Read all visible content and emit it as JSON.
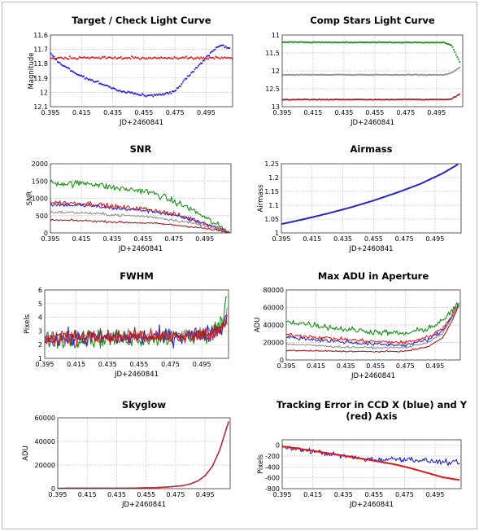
{
  "chart_data": [
    {
      "id": "target-check",
      "type": "scatter",
      "title_lines": [
        "Target / Check Light Curve"
      ],
      "xlabel": "JD+2460841",
      "ylabel": "Magnitude",
      "xlim": [
        0.395,
        0.512
      ],
      "ylim": [
        11.6,
        12.1
      ],
      "y_inverted": true,
      "xticks": [
        "0.395",
        "0.415",
        "0.435",
        "0.455",
        "0.475",
        "0.495"
      ],
      "yticks": [
        "11.6",
        "11.7",
        "11.8",
        "11.9",
        "12",
        "12.1"
      ],
      "series": [
        {
          "color": "#2020e0",
          "noise": 0.006,
          "x": [
            0.395,
            0.4,
            0.41,
            0.42,
            0.43,
            0.44,
            0.45,
            0.455,
            0.46,
            0.465,
            0.47,
            0.475,
            0.48,
            0.485,
            0.49,
            0.495,
            0.5,
            0.505,
            0.51
          ],
          "y": [
            11.72,
            11.79,
            11.86,
            11.91,
            11.95,
            11.99,
            12.01,
            12.02,
            12.02,
            12.02,
            12.01,
            11.99,
            11.93,
            11.87,
            11.82,
            11.76,
            11.7,
            11.67,
            11.69
          ]
        },
        {
          "color": "#e02020",
          "noise": 0.006,
          "x": [
            0.395,
            0.512
          ],
          "y": [
            11.76,
            11.76
          ]
        }
      ]
    },
    {
      "id": "comp-stars",
      "type": "scatter",
      "title_lines": [
        "Comp Stars Light Curve"
      ],
      "xlabel": "JD+2460841",
      "ylabel": "",
      "xlim": [
        0.395,
        0.512
      ],
      "ylim": [
        11,
        13
      ],
      "y_inverted": true,
      "xticks": [
        "0.395",
        "0.415",
        "0.435",
        "0.455",
        "0.475",
        "0.495"
      ],
      "yticks": [
        "11",
        "11.5",
        "12",
        "12.5",
        "13"
      ],
      "series": [
        {
          "color": "#189018",
          "noise": 0.008,
          "x": [
            0.395,
            0.5,
            0.505,
            0.51
          ],
          "y": [
            11.2,
            11.21,
            11.3,
            11.75
          ]
        },
        {
          "color": "#909090",
          "noise": 0.008,
          "x": [
            0.395,
            0.5,
            0.505,
            0.51
          ],
          "y": [
            12.11,
            12.11,
            12.05,
            11.9
          ]
        },
        {
          "color": "#a02020",
          "noise": 0.008,
          "x": [
            0.395,
            0.5,
            0.505,
            0.51
          ],
          "y": [
            12.8,
            12.8,
            12.78,
            12.65
          ]
        }
      ]
    },
    {
      "id": "snr",
      "type": "line",
      "title_lines": [
        "SNR"
      ],
      "xlabel": "JD+2460841",
      "ylabel": "SNR",
      "xlim": [
        0.395,
        0.512
      ],
      "ylim": [
        0,
        2000
      ],
      "xticks": [
        "0.395",
        "0.415",
        "0.435",
        "0.455",
        "0.475",
        "0.495"
      ],
      "yticks": [
        "0",
        "500",
        "1000",
        "1500",
        "2000"
      ],
      "series": [
        {
          "color": "#189018",
          "noise": 70,
          "x": [
            0.395,
            0.41,
            0.42,
            0.43,
            0.44,
            0.455,
            0.465,
            0.475,
            0.485,
            0.495,
            0.505,
            0.511
          ],
          "y": [
            1450,
            1420,
            1450,
            1350,
            1280,
            1220,
            1100,
            900,
            720,
            450,
            170,
            30
          ]
        },
        {
          "color": "#e02020",
          "noise": 50,
          "x": [
            0.395,
            0.41,
            0.42,
            0.43,
            0.44,
            0.455,
            0.465,
            0.475,
            0.485,
            0.495,
            0.505,
            0.511
          ],
          "y": [
            880,
            860,
            850,
            800,
            740,
            700,
            640,
            540,
            430,
            290,
            120,
            25
          ]
        },
        {
          "color": "#3030c8",
          "noise": 40,
          "x": [
            0.395,
            0.41,
            0.42,
            0.43,
            0.44,
            0.455,
            0.465,
            0.475,
            0.485,
            0.495,
            0.505,
            0.511
          ],
          "y": [
            820,
            800,
            790,
            740,
            700,
            650,
            600,
            500,
            400,
            270,
            110,
            22
          ]
        },
        {
          "color": "#909090",
          "noise": 30,
          "x": [
            0.395,
            0.41,
            0.42,
            0.43,
            0.44,
            0.455,
            0.465,
            0.475,
            0.485,
            0.495,
            0.505,
            0.511
          ],
          "y": [
            600,
            590,
            570,
            540,
            510,
            480,
            440,
            370,
            300,
            210,
            90,
            18
          ]
        },
        {
          "color": "#a02020",
          "noise": 20,
          "x": [
            0.395,
            0.41,
            0.42,
            0.43,
            0.44,
            0.455,
            0.465,
            0.475,
            0.485,
            0.495,
            0.505,
            0.511
          ],
          "y": [
            370,
            360,
            350,
            330,
            310,
            290,
            270,
            230,
            185,
            130,
            60,
            12
          ]
        }
      ]
    },
    {
      "id": "airmass",
      "type": "line",
      "title_lines": [
        "Airmass"
      ],
      "xlabel": "JD+2460841",
      "ylabel": "Airmass",
      "xlim": [
        0.395,
        0.512
      ],
      "ylim": [
        1,
        1.25
      ],
      "xticks": [
        "0.395",
        "0.415",
        "0.435",
        "0.455",
        "0.475",
        "0.495"
      ],
      "yticks": [
        "1",
        "1.05",
        "1.1",
        "1.15",
        "1.2",
        "1.25"
      ],
      "series": [
        {
          "color": "#2424d0",
          "noise": 0,
          "width": 2,
          "x": [
            0.395,
            0.41,
            0.425,
            0.44,
            0.455,
            0.47,
            0.485,
            0.5,
            0.51
          ],
          "y": [
            1.032,
            1.05,
            1.07,
            1.092,
            1.117,
            1.145,
            1.176,
            1.215,
            1.248
          ]
        }
      ]
    },
    {
      "id": "fwhm",
      "type": "line",
      "title_lines": [
        "FWHM"
      ],
      "xlabel": "JD+2460841",
      "ylabel": "Pixels",
      "xlim": [
        0.395,
        0.512
      ],
      "ylim": [
        1,
        6
      ],
      "xticks": [
        "0.395",
        "0.415",
        "0.435",
        "0.455",
        "0.475",
        "0.495"
      ],
      "yticks": [
        "1",
        "2",
        "3",
        "4",
        "5",
        "6"
      ],
      "series": [
        {
          "color": "#189018",
          "noise": 0.45,
          "x": [
            0.395,
            0.48,
            0.5,
            0.505,
            0.509,
            0.511
          ],
          "y": [
            2.4,
            2.5,
            2.7,
            3.2,
            4.2,
            5.6
          ]
        },
        {
          "color": "#909090",
          "noise": 0.35,
          "x": [
            0.395,
            0.48,
            0.5,
            0.505,
            0.509,
            0.511
          ],
          "y": [
            2.5,
            2.6,
            2.8,
            3.0,
            3.6,
            4.6
          ]
        },
        {
          "color": "#3030c8",
          "noise": 0.45,
          "x": [
            0.395,
            0.48,
            0.5,
            0.505,
            0.509,
            0.511
          ],
          "y": [
            2.4,
            2.6,
            2.8,
            3.0,
            3.5,
            4.2
          ]
        },
        {
          "color": "#e02020",
          "noise": 0.4,
          "x": [
            0.395,
            0.48,
            0.5,
            0.505,
            0.509,
            0.511
          ],
          "y": [
            2.5,
            2.6,
            2.8,
            3.0,
            3.4,
            4.0
          ]
        },
        {
          "color": "#a02020",
          "noise": 0.35,
          "x": [
            0.395,
            0.48,
            0.5,
            0.505,
            0.509,
            0.511
          ],
          "y": [
            2.6,
            2.6,
            2.8,
            3.0,
            3.3,
            3.8
          ]
        }
      ]
    },
    {
      "id": "max-adu",
      "type": "line",
      "title_lines": [
        "Max ADU in Aperture"
      ],
      "xlabel": "JD+2460841",
      "ylabel": "ADU",
      "xlim": [
        0.395,
        0.512
      ],
      "ylim": [
        0,
        80000
      ],
      "xticks": [
        "0.395",
        "0.415",
        "0.435",
        "0.455",
        "0.475",
        "0.495"
      ],
      "yticks": [
        "0",
        "20000",
        "40000",
        "60000",
        "80000"
      ],
      "series": [
        {
          "color": "#189018",
          "noise": 2500,
          "x": [
            0.395,
            0.41,
            0.43,
            0.455,
            0.475,
            0.49,
            0.5,
            0.505,
            0.511
          ],
          "y": [
            44000,
            41000,
            36000,
            32000,
            30000,
            36000,
            44000,
            54000,
            64000
          ]
        },
        {
          "color": "#e02020",
          "noise": 1500,
          "x": [
            0.395,
            0.41,
            0.43,
            0.455,
            0.475,
            0.49,
            0.5,
            0.505,
            0.511
          ],
          "y": [
            29000,
            27000,
            24000,
            21000,
            20000,
            26000,
            36000,
            48000,
            64000
          ]
        },
        {
          "color": "#3030c8",
          "noise": 1500,
          "x": [
            0.395,
            0.41,
            0.43,
            0.455,
            0.475,
            0.49,
            0.5,
            0.505,
            0.511
          ],
          "y": [
            26000,
            24000,
            21000,
            18000,
            17000,
            23000,
            33000,
            46000,
            63000
          ]
        },
        {
          "color": "#909090",
          "noise": 800,
          "x": [
            0.395,
            0.41,
            0.43,
            0.455,
            0.475,
            0.49,
            0.5,
            0.505,
            0.511
          ],
          "y": [
            18000,
            17000,
            15000,
            14000,
            14000,
            20000,
            30000,
            44000,
            63000
          ]
        },
        {
          "color": "#a02020",
          "noise": 500,
          "x": [
            0.395,
            0.41,
            0.43,
            0.455,
            0.475,
            0.49,
            0.5,
            0.505,
            0.511
          ],
          "y": [
            11000,
            10500,
            10000,
            9500,
            10000,
            15000,
            25000,
            40000,
            62000
          ]
        }
      ]
    },
    {
      "id": "skyglow",
      "type": "line",
      "title_lines": [
        "Skyglow"
      ],
      "xlabel": "JD+2460841",
      "ylabel": "ADU",
      "xlim": [
        0.395,
        0.512
      ],
      "ylim": [
        0,
        60000
      ],
      "xticks": [
        "0.395",
        "0.415",
        "0.435",
        "0.455",
        "0.475",
        "0.495"
      ],
      "yticks": [
        "0",
        "20000",
        "40000",
        "60000"
      ],
      "series": [
        {
          "color": "#3030c8",
          "noise": 0,
          "width": 1.4,
          "x": [
            0.395,
            0.44,
            0.46,
            0.47,
            0.48,
            0.485,
            0.49,
            0.495,
            0.5,
            0.505,
            0.511
          ],
          "y": [
            300,
            400,
            800,
            1400,
            2600,
            4000,
            6500,
            11000,
            19000,
            33000,
            57000
          ]
        },
        {
          "color": "#d02020",
          "noise": 0,
          "width": 1.4,
          "x": [
            0.395,
            0.44,
            0.46,
            0.47,
            0.48,
            0.485,
            0.49,
            0.495,
            0.5,
            0.505,
            0.511
          ],
          "y": [
            300,
            400,
            800,
            1400,
            2600,
            4000,
            6500,
            11000,
            19000,
            33000,
            57000
          ]
        }
      ]
    },
    {
      "id": "tracking-error",
      "type": "line",
      "title_lines": [
        "Tracking Error in CCD X (blue) and Y",
        "(red) Axis"
      ],
      "xlabel": "JD+2460841",
      "ylabel": "Pixels",
      "xlim": [
        0.395,
        0.512
      ],
      "ylim": [
        -800,
        100
      ],
      "xticks": [
        "0.395",
        "0.415",
        "0.435",
        "0.455",
        "0.475",
        "0.495"
      ],
      "yticks": [
        "0",
        "-200",
        "-400",
        "-600",
        "-800"
      ],
      "series": [
        {
          "color": "#2424d0",
          "noise": 35,
          "x": [
            0.395,
            0.41,
            0.43,
            0.45,
            0.46,
            0.47,
            0.48,
            0.49,
            0.5,
            0.511
          ],
          "y": [
            -40,
            -90,
            -180,
            -260,
            -270,
            -250,
            -260,
            -290,
            -310,
            -330
          ]
        },
        {
          "color": "#e01818",
          "noise": 0,
          "width": 2,
          "x": [
            0.395,
            0.41,
            0.43,
            0.45,
            0.46,
            0.47,
            0.48,
            0.49,
            0.5,
            0.511
          ],
          "y": [
            -20,
            -80,
            -170,
            -260,
            -310,
            -360,
            -430,
            -510,
            -590,
            -640
          ]
        }
      ]
    }
  ]
}
